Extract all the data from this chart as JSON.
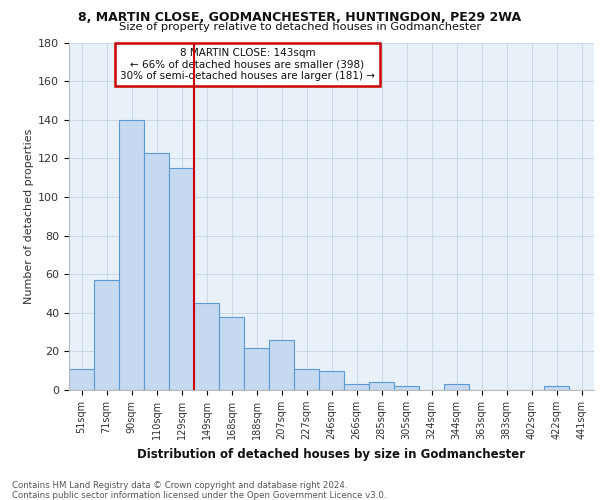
{
  "title1": "8, MARTIN CLOSE, GODMANCHESTER, HUNTINGDON, PE29 2WA",
  "title2": "Size of property relative to detached houses in Godmanchester",
  "xlabel": "Distribution of detached houses by size in Godmanchester",
  "ylabel": "Number of detached properties",
  "categories": [
    "51sqm",
    "71sqm",
    "90sqm",
    "110sqm",
    "129sqm",
    "149sqm",
    "168sqm",
    "188sqm",
    "207sqm",
    "227sqm",
    "246sqm",
    "266sqm",
    "285sqm",
    "305sqm",
    "324sqm",
    "344sqm",
    "363sqm",
    "383sqm",
    "402sqm",
    "422sqm",
    "441sqm"
  ],
  "values": [
    11,
    57,
    140,
    123,
    115,
    45,
    38,
    22,
    26,
    11,
    10,
    3,
    4,
    2,
    0,
    3,
    0,
    0,
    0,
    2,
    0
  ],
  "bar_color": "#c5d9f0",
  "bar_edge_color": "#5b9bd5",
  "vline_x": 4.5,
  "vline_color": "#cc0000",
  "annotation_line1": "8 MARTIN CLOSE: 143sqm",
  "annotation_line2": "← 66% of detached houses are smaller (398)",
  "annotation_line3": "30% of semi-detached houses are larger (181) →",
  "annotation_box_color": "#ffffff",
  "annotation_box_edge": "#cc0000",
  "footnote1": "Contains HM Land Registry data © Crown copyright and database right 2024.",
  "footnote2": "Contains public sector information licensed under the Open Government Licence v3.0.",
  "ylim": [
    0,
    180
  ],
  "yticks": [
    0,
    20,
    40,
    60,
    80,
    100,
    120,
    140,
    160,
    180
  ],
  "grid_color": "#c8d8e8",
  "background_color": "#e8f0f8"
}
